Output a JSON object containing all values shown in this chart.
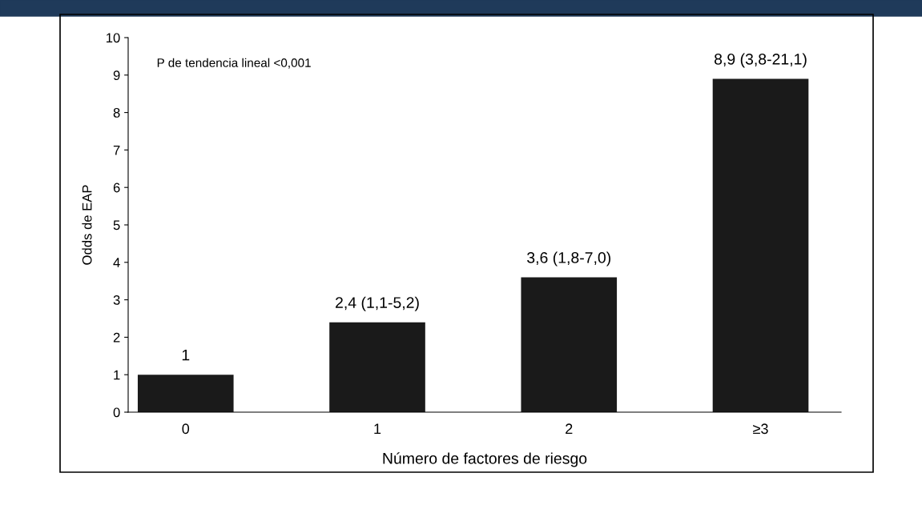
{
  "chart_data": {
    "type": "bar",
    "xlabel": "Número de factores de riesgo",
    "ylabel": "Odds de EAP",
    "categories": [
      "0",
      "1",
      "2",
      "≥3"
    ],
    "values": [
      1,
      2.4,
      3.6,
      8.9
    ],
    "value_labels": [
      "1",
      "2,4 (1,1-5,2)",
      "3,6 (1,8-7,0)",
      "8,9 (3,8-21,1)"
    ],
    "color": "#1a1a1a",
    "ylim": [
      0,
      10
    ],
    "yticks": [
      0,
      1,
      2,
      3,
      4,
      5,
      6,
      7,
      8,
      9,
      10
    ],
    "annotations": [
      "P de tendencia lineal <0,001"
    ],
    "grid": false
  }
}
